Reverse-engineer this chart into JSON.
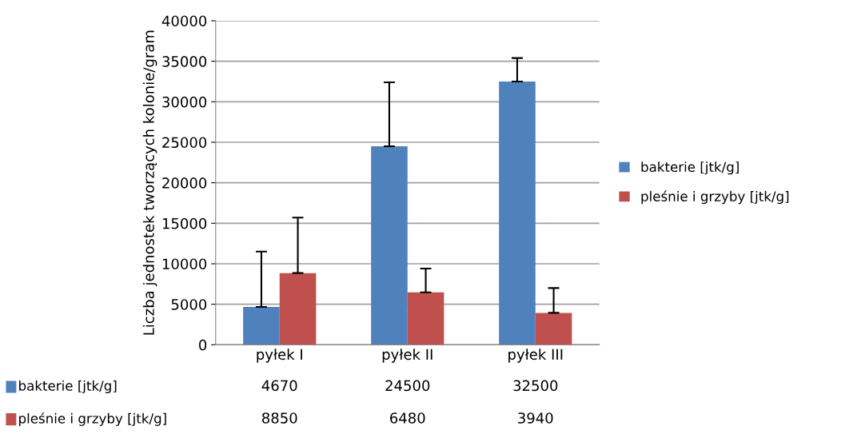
{
  "chart_data": {
    "type": "bar",
    "ylabel": "Liczba jednostek tworzących kolonie/gram",
    "categories": [
      "pyłek I",
      "pyłek II",
      "pyłek III"
    ],
    "series": [
      {
        "name": "bakterie [jtk/g]",
        "color": "#4f81bd",
        "values": [
          4670,
          24500,
          32500
        ],
        "errors": [
          [
            4670,
            11500
          ],
          [
            24500,
            32400
          ],
          [
            32500,
            35400
          ]
        ]
      },
      {
        "name": "pleśnie i grzyby [jtk/g]",
        "color": "#c0504d",
        "values": [
          8850,
          6480,
          3940
        ],
        "errors": [
          [
            8850,
            15700
          ],
          [
            6480,
            9400
          ],
          [
            3940,
            7000
          ]
        ]
      }
    ],
    "ylim": [
      0,
      40000
    ],
    "yticks": [
      0,
      5000,
      10000,
      15000,
      20000,
      25000,
      30000,
      35000,
      40000
    ],
    "grid": "y",
    "legend": "right",
    "data_labels": true
  }
}
